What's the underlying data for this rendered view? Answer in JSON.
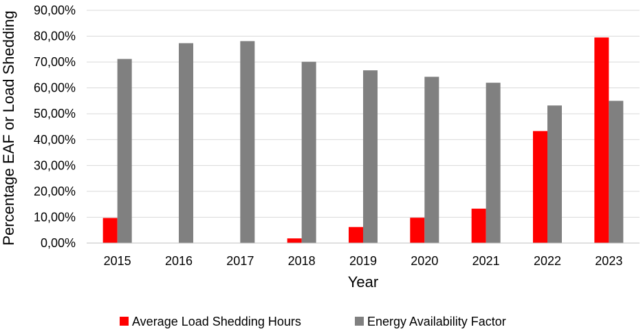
{
  "chart_data": {
    "type": "bar",
    "title": "",
    "xlabel": "Year",
    "ylabel": "Percentage EAF or Load Shedding",
    "categories": [
      "2015",
      "2016",
      "2017",
      "2018",
      "2019",
      "2020",
      "2021",
      "2022",
      "2023"
    ],
    "ylim": [
      0,
      90
    ],
    "y_ticks": [
      {
        "value": 0,
        "label": "0,00%"
      },
      {
        "value": 10,
        "label": "10,00%"
      },
      {
        "value": 20,
        "label": "20,00%"
      },
      {
        "value": 30,
        "label": "30,00%"
      },
      {
        "value": 40,
        "label": "40,00%"
      },
      {
        "value": 50,
        "label": "50,00%"
      },
      {
        "value": 60,
        "label": "60,00%"
      },
      {
        "value": 70,
        "label": "70,00%"
      },
      {
        "value": 80,
        "label": "80,00%"
      },
      {
        "value": 90,
        "label": "90,00%"
      }
    ],
    "grid": true,
    "legend_position": "bottom",
    "series": [
      {
        "name": "Average Load Shedding Hours",
        "color": "#ff0000",
        "values": [
          9.7,
          0,
          0,
          1.8,
          6.2,
          9.8,
          13.3,
          43.3,
          79.5
        ]
      },
      {
        "name": "Energy Availability Factor",
        "color": "#808080",
        "values": [
          71.2,
          77.3,
          78.1,
          70.1,
          66.8,
          64.3,
          62.0,
          53.2,
          55.0
        ]
      }
    ]
  }
}
